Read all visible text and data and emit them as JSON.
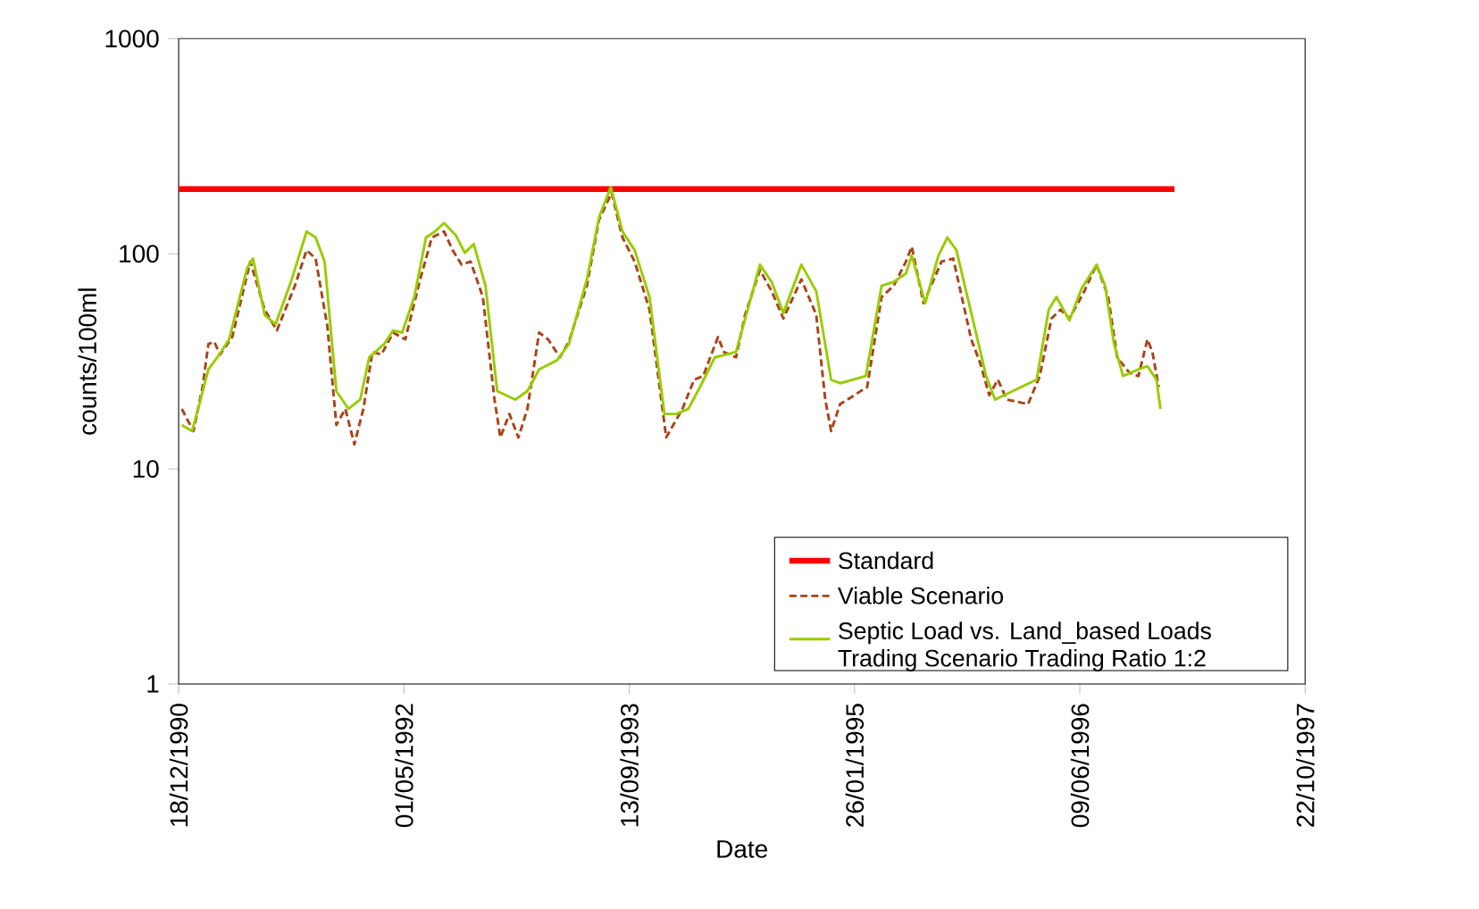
{
  "chart_data": {
    "type": "line",
    "xlabel": "Date",
    "ylabel": "counts/100ml",
    "log": "y",
    "grid": false,
    "legend": "bottom right",
    "marker": "none",
    "xlim": [
      "1990-12-18",
      "1997-10-22"
    ],
    "ylim": [
      1,
      1000
    ],
    "yticks": [
      1,
      10,
      100,
      1000
    ],
    "xticks": [
      {
        "value": "1990-12-18",
        "label": "18/12/1990"
      },
      {
        "value": "1992-05-01",
        "label": "01/05/1992"
      },
      {
        "value": "1993-09-13",
        "label": "13/09/1993"
      },
      {
        "value": "1995-01-26",
        "label": "26/01/1995"
      },
      {
        "value": "1996-06-09",
        "label": "09/06/1996"
      },
      {
        "value": "1997-10-22",
        "label": "22/10/1997"
      }
    ],
    "series": [
      {
        "name": "Standard",
        "color": "#ff0000",
        "line_style": "solid",
        "x": [
          "1990-12-18",
          "1997-01-05"
        ],
        "values": [
          200,
          200
        ]
      },
      {
        "name": "Viable Scenario",
        "color": "#a9441b",
        "line_style": "dashed",
        "x": [
          "1990-12-25",
          "1991-01-06",
          "1991-01-20",
          "1991-02-09",
          "1991-02-22",
          "1991-03-07",
          "1991-03-20",
          "1991-04-16",
          "1991-05-26",
          "1991-06-27",
          "1991-07-24",
          "1991-09-02",
          "1991-09-28",
          "1991-10-18",
          "1991-11-13",
          "1991-12-03",
          "1991-12-23",
          "1992-01-12",
          "1992-02-01",
          "1992-02-21",
          "1992-03-12",
          "1992-04-07",
          "1992-05-04",
          "1992-06-06",
          "1992-07-02",
          "1992-07-29",
          "1992-08-17",
          "1992-09-06",
          "1992-09-26",
          "1992-10-23",
          "1992-11-18",
          "1992-12-01",
          "1992-12-21",
          "1993-01-10",
          "1993-01-30",
          "1993-02-25",
          "1993-03-17",
          "1993-04-12",
          "1993-05-02",
          "1993-06-11",
          "1993-07-08",
          "1993-08-05",
          "1993-08-29",
          "1993-09-25",
          "1993-10-28",
          "1993-12-04",
          "1994-01-09",
          "1994-02-04",
          "1994-02-24",
          "1994-03-29",
          "1994-04-11",
          "1994-05-08",
          "1994-05-28",
          "1994-06-30",
          "1994-07-26",
          "1994-08-21",
          "1994-09-30",
          "1994-11-02",
          "1994-11-22",
          "1994-12-05",
          "1994-12-25",
          "1995-02-23",
          "1995-03-27",
          "1995-04-23",
          "1995-05-20",
          "1995-06-02",
          "1995-06-28",
          "1995-08-07",
          "1995-09-02",
          "1995-10-12",
          "1995-11-01",
          "1995-11-21",
          "1995-12-10",
          "1995-12-30",
          "1996-02-15",
          "1996-03-12",
          "1996-04-07",
          "1996-04-27",
          "1996-05-17",
          "1996-06-19",
          "1996-07-16",
          "1996-08-11",
          "1996-08-31",
          "1996-09-27",
          "1996-10-17",
          "1996-11-06",
          "1996-11-17",
          "1996-12-01"
        ],
        "values": [
          19,
          17,
          15,
          24,
          38,
          39,
          34,
          41,
          92,
          55,
          44,
          71,
          104,
          95,
          46,
          16,
          19,
          13,
          19,
          35,
          34,
          43,
          40,
          76,
          119,
          127,
          104,
          89,
          92,
          63,
          21,
          14,
          18,
          14,
          19,
          43,
          40,
          33,
          39,
          71,
          144,
          192,
          119,
          92,
          55,
          14,
          19,
          26,
          27,
          41,
          35,
          33,
          52,
          84,
          67,
          50,
          76,
          52,
          21,
          15,
          20,
          24,
          63,
          71,
          92,
          108,
          59,
          92,
          95,
          40,
          31,
          22,
          26,
          21,
          20,
          27,
          50,
          55,
          50,
          67,
          89,
          63,
          33,
          28,
          27,
          40,
          35,
          24
        ]
      },
      {
        "name": "Septic Load vs. Land_based Loads Trading Scenario Trading Ratio 1:2",
        "color": "#99cc00",
        "line_style": "solid",
        "x": [
          "1990-12-25",
          "1991-01-17",
          "1991-02-02",
          "1991-02-22",
          "1991-03-14",
          "1991-04-09",
          "1991-05-19",
          "1991-06-01",
          "1991-06-27",
          "1991-07-21",
          "1991-08-26",
          "1991-09-28",
          "1991-10-18",
          "1991-11-07",
          "1991-12-03",
          "1991-12-30",
          "1992-01-25",
          "1992-02-14",
          "1992-03-18",
          "1992-04-07",
          "1992-04-27",
          "1992-05-24",
          "1992-06-19",
          "1992-07-09",
          "1992-07-29",
          "1992-08-24",
          "1992-09-13",
          "1992-10-03",
          "1992-10-29",
          "1992-11-24",
          "1993-01-03",
          "1993-01-30",
          "1993-02-25",
          "1993-04-06",
          "1993-05-02",
          "1993-06-11",
          "1993-07-08",
          "1993-08-03",
          "1993-08-29",
          "1993-09-25",
          "1993-10-28",
          "1993-11-30",
          "1993-12-26",
          "1994-01-22",
          "1994-02-17",
          "1994-03-22",
          "1994-05-08",
          "1994-06-03",
          "1994-06-30",
          "1994-07-26",
          "1994-08-21",
          "1994-09-30",
          "1994-11-02",
          "1994-12-05",
          "1994-12-25",
          "1995-02-20",
          "1995-03-27",
          "1995-04-23",
          "1995-05-20",
          "1995-06-02",
          "1995-07-02",
          "1995-07-31",
          "1995-08-20",
          "1995-09-09",
          "1995-10-19",
          "1995-11-14",
          "1995-12-04",
          "1996-03-05",
          "1996-04-01",
          "1996-04-18",
          "1996-05-17",
          "1996-06-13",
          "1996-07-16",
          "1996-08-04",
          "1996-08-24",
          "1996-09-13",
          "1996-10-17",
          "1996-11-06",
          "1996-11-26",
          "1996-12-05"
        ],
        "values": [
          16,
          15,
          20,
          29,
          33,
          40,
          86,
          95,
          52,
          47,
          76,
          127,
          119,
          92,
          23,
          19,
          21,
          33,
          38,
          44,
          43,
          63,
          119,
          127,
          139,
          122,
          101,
          111,
          71,
          23,
          21,
          23,
          29,
          32,
          38,
          76,
          148,
          204,
          127,
          104,
          63,
          18,
          18,
          19,
          24,
          33,
          35,
          55,
          89,
          74,
          53,
          89,
          67,
          26,
          25,
          27,
          71,
          74,
          81,
          98,
          59,
          98,
          119,
          104,
          46,
          27,
          21,
          26,
          55,
          63,
          49,
          69,
          89,
          71,
          38,
          27,
          29,
          30,
          26,
          19
        ]
      }
    ]
  }
}
